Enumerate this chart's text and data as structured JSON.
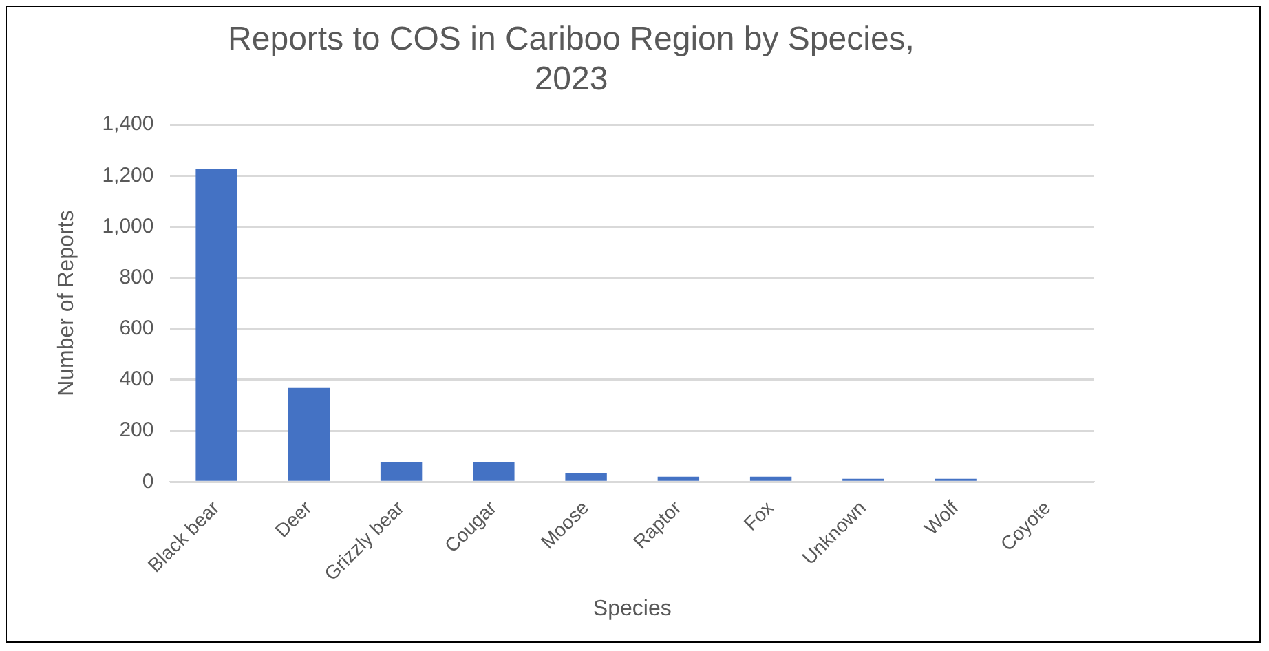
{
  "chart_data": {
    "type": "bar",
    "title": [
      "Reports to COS in Cariboo Region by Species,",
      "2023"
    ],
    "xlabel": "Species",
    "ylabel": "Number of Reports",
    "categories": [
      "Black bear",
      "Deer",
      "Grizzly bear",
      "Cougar",
      "Moose",
      "Raptor",
      "Fox",
      "Unknown",
      "Wolf",
      "Coyote"
    ],
    "values": [
      1225,
      368,
      77,
      77,
      35,
      20,
      20,
      12,
      12,
      null
    ],
    "color": "#4472c4",
    "ylim": [
      0,
      1400
    ],
    "yticks": [
      {
        "value": 0,
        "label": "0"
      },
      {
        "value": 200,
        "label": "200"
      },
      {
        "value": 400,
        "label": "400"
      },
      {
        "value": 600,
        "label": "600"
      },
      {
        "value": 800,
        "label": "800"
      },
      {
        "value": 1000,
        "label": "1,000"
      },
      {
        "value": 1200,
        "label": "1,200"
      },
      {
        "value": 1400,
        "label": "1,400"
      }
    ],
    "grid": "y",
    "legend": false
  }
}
